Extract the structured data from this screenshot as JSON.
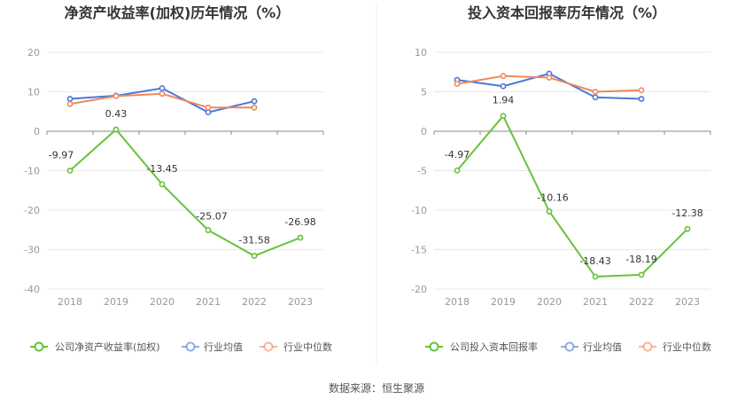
{
  "source_text": "数据来源：恒生聚源",
  "colors": {
    "company": "#67c23a",
    "mean": "#4a78d6",
    "median": "#f0875a",
    "grid": "#e8e8e8",
    "axis": "#888888"
  },
  "chart_data": [
    {
      "type": "line",
      "title": "净资产收益率(加权)历年情况（%）",
      "categories": [
        "2018",
        "2019",
        "2020",
        "2021",
        "2022",
        "2023"
      ],
      "ylim": [
        -40,
        20
      ],
      "yticks": [
        20,
        10,
        0,
        -10,
        -20,
        -30,
        -40
      ],
      "grid": true,
      "legend_position": "bottom",
      "series": [
        {
          "name": "公司净资产收益率(加权)",
          "color": "#67c23a",
          "values": [
            -9.97,
            0.43,
            -13.45,
            -25.07,
            -31.58,
            -26.98
          ],
          "labels": [
            "-9.97",
            "0.43",
            "-13.45",
            "-25.07",
            "-31.58",
            "-26.98"
          ]
        },
        {
          "name": "行业均值",
          "color": "#4a78d6",
          "values": [
            8.2,
            9.0,
            10.9,
            4.8,
            7.6,
            null
          ]
        },
        {
          "name": "行业中位数",
          "color": "#f0875a",
          "values": [
            6.9,
            8.9,
            9.5,
            6.0,
            6.0,
            null
          ]
        }
      ]
    },
    {
      "type": "line",
      "title": "投入资本回报率历年情况（%）",
      "categories": [
        "2018",
        "2019",
        "2020",
        "2021",
        "2022",
        "2023"
      ],
      "ylim": [
        -20,
        10
      ],
      "yticks": [
        10,
        5,
        0,
        -5,
        -10,
        -15,
        -20
      ],
      "grid": true,
      "legend_position": "bottom",
      "series": [
        {
          "name": "公司投入资本回报率",
          "color": "#67c23a",
          "values": [
            -4.97,
            1.94,
            -10.16,
            -18.43,
            -18.19,
            -12.38
          ],
          "labels": [
            "-4.97",
            "1.94",
            "-10.16",
            "-18.43",
            "-18.19",
            "-12.38"
          ]
        },
        {
          "name": "行业均值",
          "color": "#4a78d6",
          "values": [
            6.5,
            5.7,
            7.3,
            4.3,
            4.1,
            null
          ]
        },
        {
          "name": "行业中位数",
          "color": "#f0875a",
          "values": [
            6.0,
            7.0,
            6.8,
            5.0,
            5.2,
            null
          ]
        }
      ]
    }
  ]
}
